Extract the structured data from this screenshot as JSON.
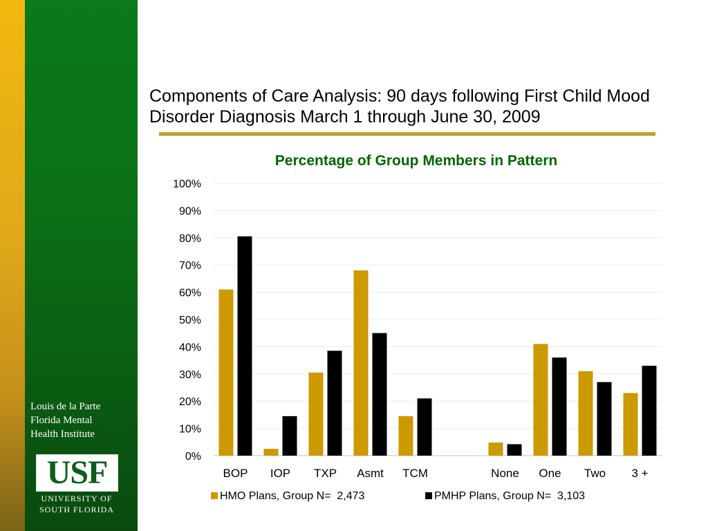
{
  "sidebar": {
    "institute_name": "Louis de la Parte\nFlorida Mental\nHealth Institute",
    "logo_text": "USF",
    "logo_subtext": "UNIVERSITY OF\nSOUTH FLORIDA"
  },
  "slide": {
    "title": "Components of Care Analysis: 90 days following First Child Mood Disorder Diagnosis March 1 through June 30, 2009"
  },
  "colors": {
    "gold": "#cc9900",
    "black": "#000000",
    "title_green": "#006400",
    "rule_gold": "#c8a82a",
    "sidebar_green": "#0a6a14"
  },
  "chart_data": {
    "type": "bar",
    "title": "Percentage of Group Members in Pattern",
    "categories": [
      "BOP",
      "IOP",
      "TXP",
      "Asmt",
      "TCM",
      "",
      "None",
      "One",
      "Two",
      "3 +"
    ],
    "series": [
      {
        "name": "HMO Plans, Group N=  2,473",
        "color": "#cc9900",
        "values": [
          61,
          2.5,
          30.5,
          68,
          14.5,
          null,
          4.8,
          41,
          31,
          23
        ]
      },
      {
        "name": "PMHP Plans, Group N=  3,103",
        "color": "#000000",
        "values": [
          80.5,
          14.5,
          38.5,
          45,
          21,
          null,
          4.2,
          36,
          27,
          33
        ]
      }
    ],
    "ylim": [
      0,
      100
    ],
    "yticks": [
      "0%",
      "10%",
      "20%",
      "30%",
      "40%",
      "50%",
      "60%",
      "70%",
      "80%",
      "90%",
      "100%"
    ],
    "grid": true,
    "legend": "bottom"
  }
}
